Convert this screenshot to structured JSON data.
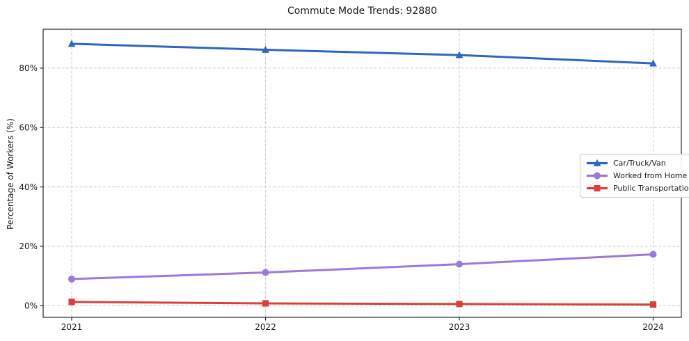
{
  "title": "Commute Mode Trends: 92880",
  "chart_data": {
    "type": "line",
    "title": "Commute Mode Trends: 92880",
    "xlabel": "",
    "ylabel": "Percentage of Workers (%)",
    "categories": [
      "2021",
      "2022",
      "2023",
      "2024"
    ],
    "y_ticks": [
      0,
      20,
      40,
      60,
      80
    ],
    "y_tick_labels": [
      "0%",
      "20%",
      "40%",
      "60%",
      "80%"
    ],
    "ylim": [
      -3.9,
      93.1
    ],
    "grid": true,
    "grid_style": "dashed",
    "legend_position": "center-right",
    "series": [
      {
        "name": "Car/Truck/Van",
        "marker": "triangle",
        "color": "#2f66bd",
        "values": [
          88.2,
          86.2,
          84.4,
          81.6
        ]
      },
      {
        "name": "Worked from Home",
        "marker": "circle",
        "color": "#9b79d8",
        "values": [
          9.0,
          11.2,
          14.0,
          17.3
        ]
      },
      {
        "name": "Public Transportation",
        "marker": "square",
        "color": "#d8403e",
        "values": [
          1.3,
          0.8,
          0.6,
          0.4
        ]
      }
    ],
    "colors": {
      "grid": "#cdcdcd",
      "axis_border": "#262626",
      "background": "#ffffff",
      "text": "#1a1a1a"
    }
  }
}
